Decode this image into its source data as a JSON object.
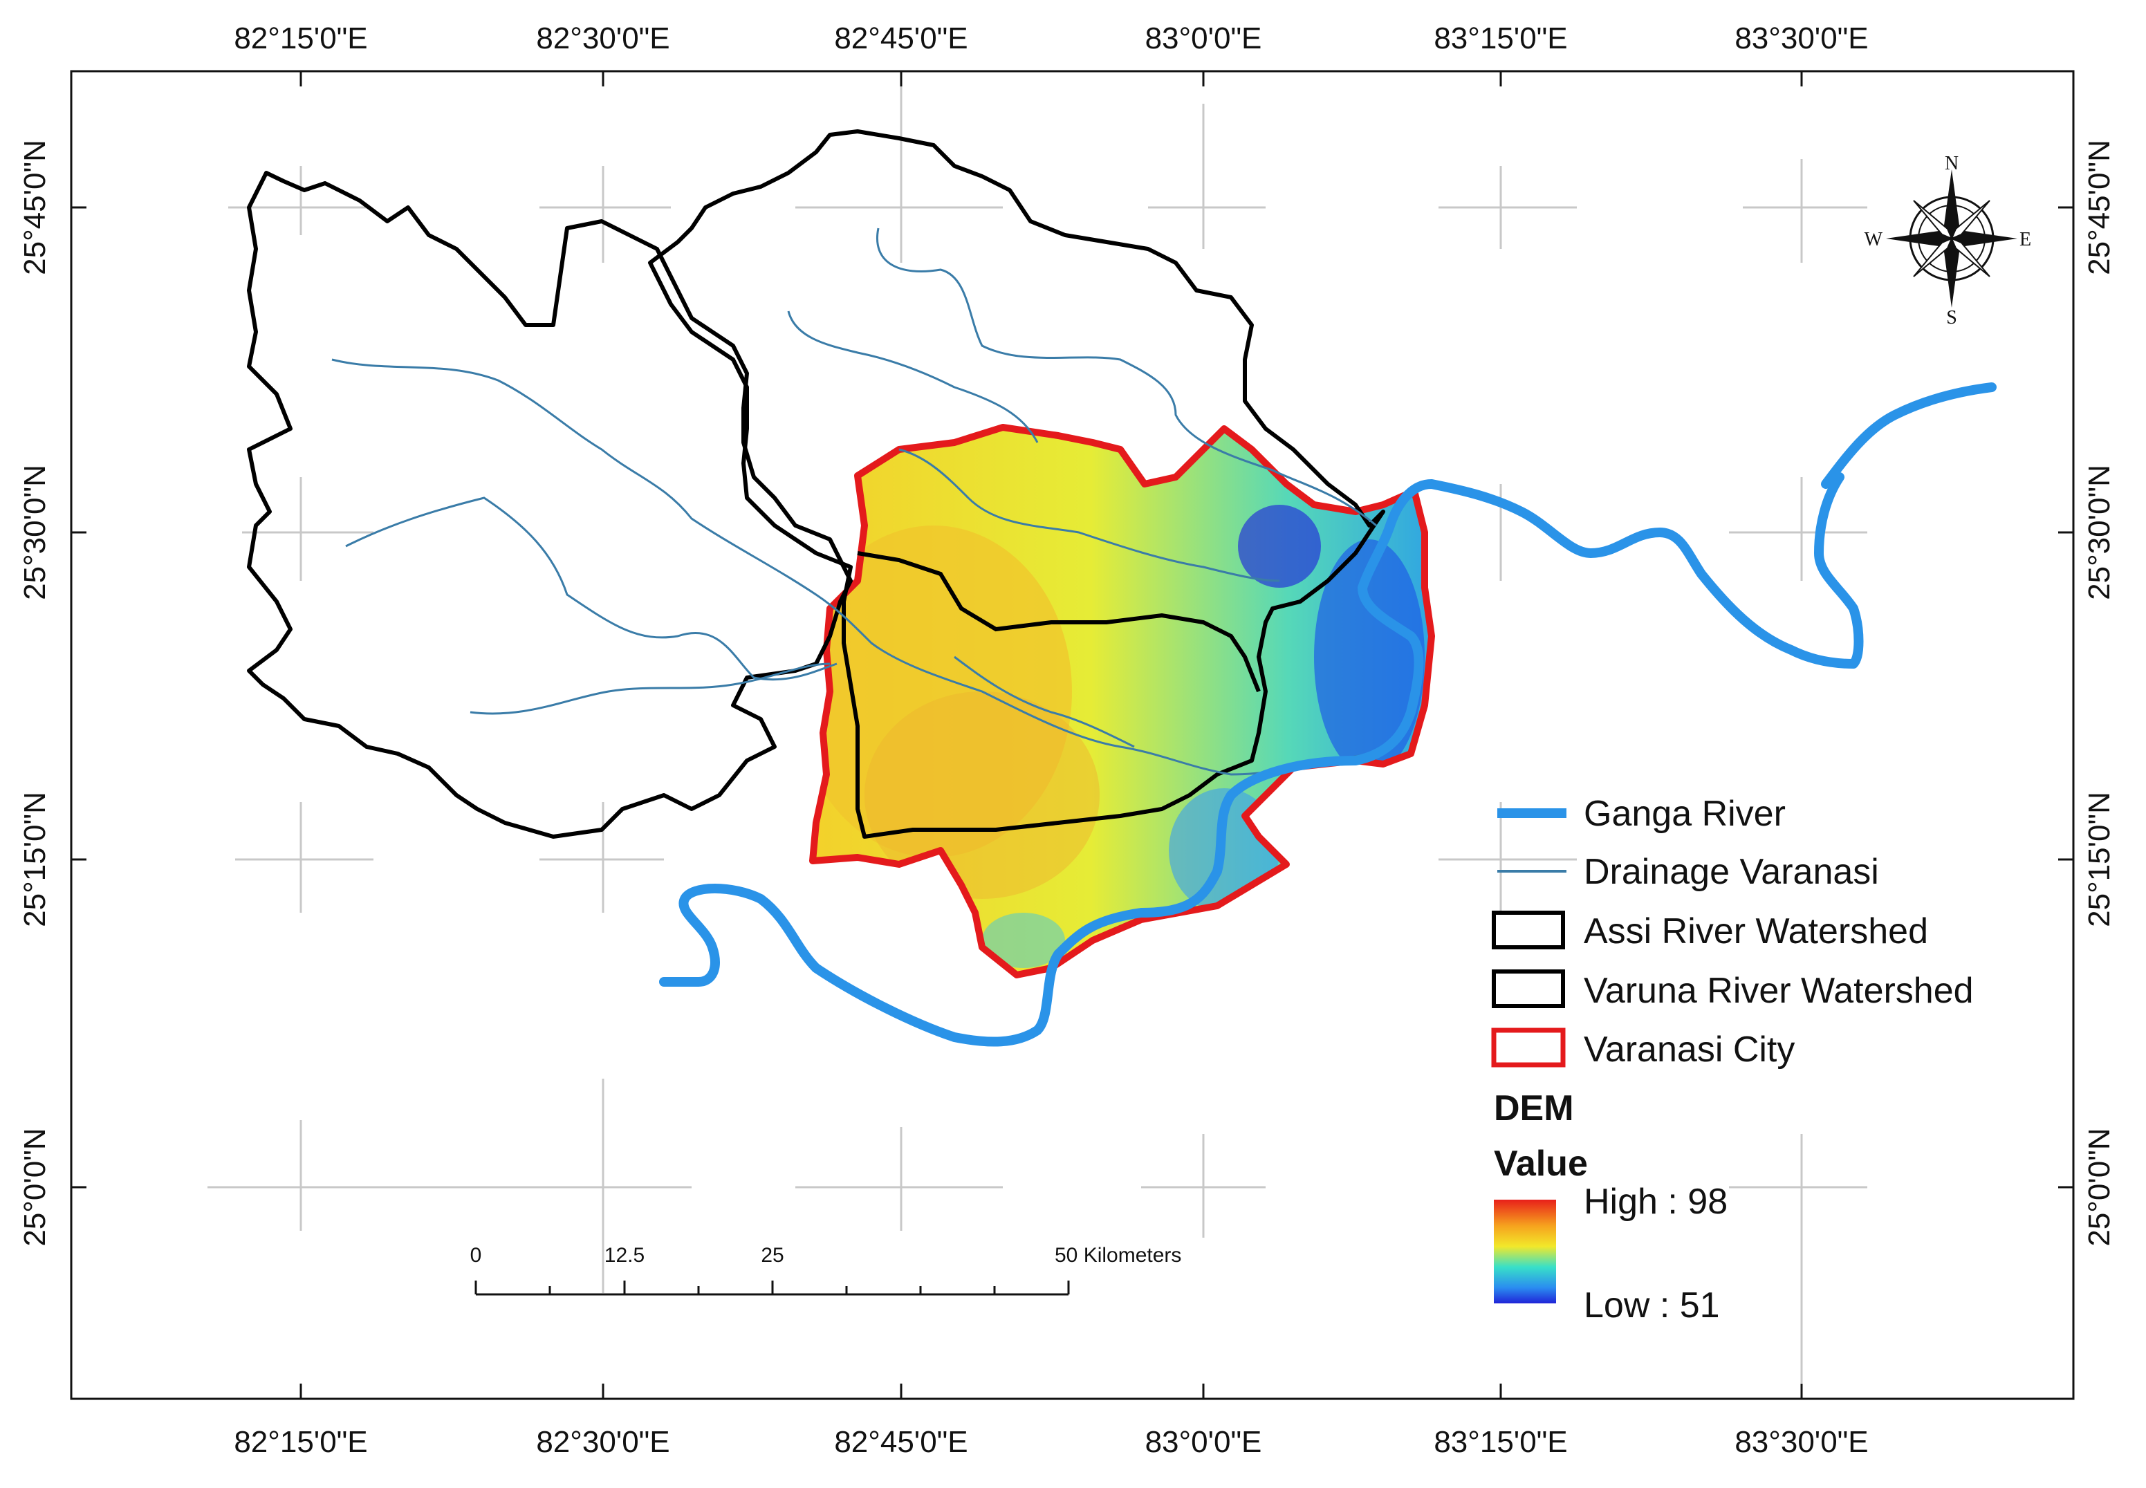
{
  "graticule": {
    "top": [
      "82°15'0\"E",
      "82°30'0\"E",
      "82°45'0\"E",
      "83°0'0\"E",
      "83°15'0\"E",
      "83°30'0\"E"
    ],
    "bottom": [
      "82°15'0\"E",
      "82°30'0\"E",
      "82°45'0\"E",
      "83°0'0\"E",
      "83°15'0\"E",
      "83°30'0\"E"
    ],
    "left": [
      "25°45'0\"N",
      "25°30'0\"N",
      "25°15'0\"N",
      "25°0'0\"N"
    ],
    "right": [
      "25°45'0\"N",
      "25°30'0\"N",
      "25°15'0\"N",
      "25°0'0\"N"
    ]
  },
  "compass": {
    "n": "N",
    "s": "S",
    "e": "E",
    "w": "W"
  },
  "legend": {
    "ganga": "Ganga River",
    "drainage": "Drainage Varanasi",
    "assi": "Assi River Watershed",
    "varuna": "Varuna River Watershed",
    "city": "Varanasi City",
    "dem_title": "DEM",
    "value_title": "Value",
    "high": "High : 98",
    "low": "Low : 51"
  },
  "scalebar": {
    "t0": "0",
    "t1": "12.5",
    "t2": "25",
    "t3": "50 Kilometers"
  },
  "colors": {
    "ganga": "#2a93e8",
    "drainage": "#3a7ca8",
    "watershed": "#000000",
    "city": "#e41a1c",
    "dem_high": "#e8201a",
    "dem_mid": "#f2e82a",
    "dem_low": "#2024d8"
  }
}
